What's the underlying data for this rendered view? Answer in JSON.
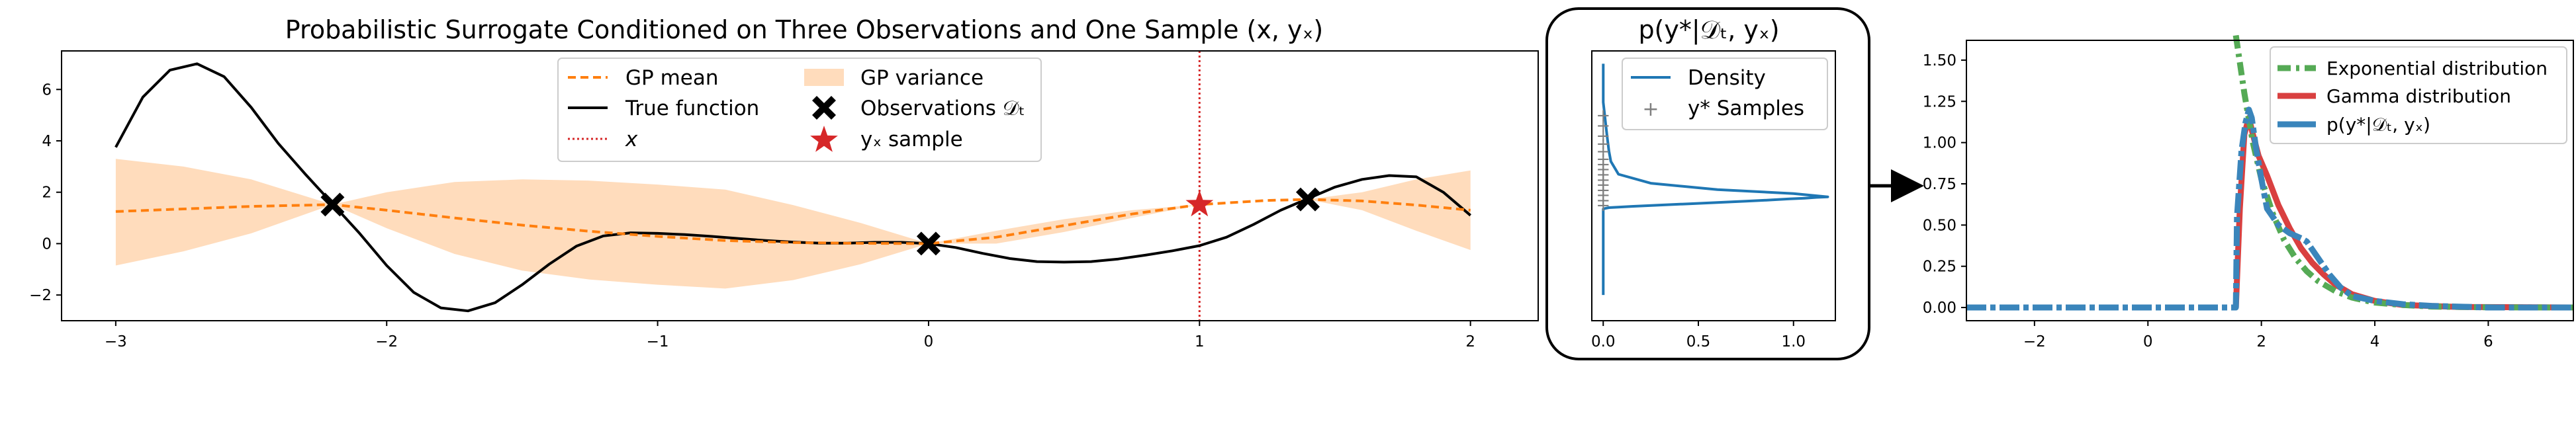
{
  "chart_data": [
    {
      "type": "line",
      "title": "Probabilistic Surrogate Conditioned on Three Observations and One Sample (x, yₓ)",
      "xlim": [
        -3.2,
        2.25
      ],
      "ylim": [
        -3.0,
        7.5
      ],
      "xticks": [
        "−3",
        "−2",
        "−1",
        "0",
        "1",
        "2"
      ],
      "yticks": [
        "−2",
        "0",
        "2",
        "4",
        "6"
      ],
      "legend": {
        "position": "top-center",
        "gp_mean": "GP mean",
        "gp_variance": "GP variance",
        "true_function": "True function",
        "observations": "Observations 𝒟ₜ",
        "x_marker": "x",
        "yx_sample": "yₓ sample"
      },
      "series": [
        {
          "name": "GP mean",
          "x": [
            -3.0,
            -2.75,
            -2.5,
            -2.2,
            -2.0,
            -1.75,
            -1.5,
            -1.25,
            -1.0,
            -0.75,
            -0.5,
            -0.25,
            0.0,
            0.25,
            0.5,
            0.75,
            1.0,
            1.25,
            1.4,
            1.6,
            1.8,
            2.0
          ],
          "y": [
            1.25,
            1.35,
            1.45,
            1.52,
            1.3,
            1.0,
            0.72,
            0.48,
            0.28,
            0.12,
            0.04,
            0.01,
            0.0,
            0.25,
            0.7,
            1.15,
            1.52,
            1.68,
            1.72,
            1.66,
            1.5,
            1.3
          ]
        },
        {
          "name": "GP variance",
          "x": [
            -3.0,
            -2.75,
            -2.5,
            -2.2,
            -2.0,
            -1.75,
            -1.5,
            -1.25,
            -1.0,
            -0.75,
            -0.5,
            -0.25,
            0.0,
            0.25,
            0.5,
            0.75,
            1.0,
            1.25,
            1.4,
            1.6,
            1.8,
            2.0
          ],
          "upper": [
            3.3,
            3.0,
            2.5,
            1.52,
            2.0,
            2.4,
            2.5,
            2.45,
            2.3,
            2.1,
            1.5,
            0.8,
            0.0,
            0.5,
            0.95,
            1.3,
            1.52,
            1.68,
            1.72,
            2.0,
            2.5,
            2.85
          ],
          "lower": [
            -0.85,
            -0.3,
            0.4,
            1.52,
            0.6,
            -0.4,
            -1.05,
            -1.4,
            -1.6,
            -1.75,
            -1.42,
            -0.8,
            0.0,
            0.0,
            0.45,
            1.0,
            1.52,
            1.68,
            1.72,
            1.3,
            0.5,
            -0.25
          ]
        },
        {
          "name": "True function",
          "x": [
            -3.0,
            -2.9,
            -2.8,
            -2.7,
            -2.6,
            -2.5,
            -2.4,
            -2.3,
            -2.2,
            -2.1,
            -2.0,
            -1.9,
            -1.8,
            -1.7,
            -1.6,
            -1.5,
            -1.4,
            -1.3,
            -1.2,
            -1.1,
            -1.0,
            -0.9,
            -0.8,
            -0.7,
            -0.6,
            -0.5,
            -0.4,
            -0.3,
            -0.2,
            -0.1,
            0.0,
            0.1,
            0.2,
            0.3,
            0.4,
            0.5,
            0.6,
            0.7,
            0.8,
            0.9,
            1.0,
            1.1,
            1.2,
            1.3,
            1.4,
            1.5,
            1.6,
            1.7,
            1.8,
            1.9,
            2.0
          ],
          "y": [
            3.75,
            5.7,
            6.75,
            7.0,
            6.5,
            5.3,
            3.9,
            2.7,
            1.55,
            0.4,
            -0.85,
            -1.9,
            -2.5,
            -2.62,
            -2.3,
            -1.6,
            -0.8,
            -0.1,
            0.3,
            0.42,
            0.4,
            0.35,
            0.28,
            0.2,
            0.12,
            0.06,
            0.02,
            0.02,
            0.05,
            0.05,
            0.0,
            -0.15,
            -0.38,
            -0.58,
            -0.7,
            -0.72,
            -0.7,
            -0.6,
            -0.45,
            -0.28,
            -0.08,
            0.25,
            0.75,
            1.3,
            1.75,
            2.2,
            2.5,
            2.65,
            2.6,
            2.0,
            1.1
          ]
        }
      ],
      "observations": [
        {
          "x": -2.2,
          "y": 1.52
        },
        {
          "x": 0.0,
          "y": 0.0
        },
        {
          "x": 1.4,
          "y": 1.72
        }
      ],
      "sample": {
        "x": 1.0,
        "y": 1.52
      },
      "vline_x": 1.0,
      "colors": {
        "mean": "#ff7f0e",
        "variance": "#ffdcbc",
        "true": "#000000",
        "vline": "#d62728",
        "star": "#d62728"
      }
    },
    {
      "type": "line",
      "title": "p(y*|𝒟ₜ, yₓ)",
      "xlim": [
        -0.06,
        1.22
      ],
      "ylim": [
        -3.0,
        7.5
      ],
      "xticks": [
        "0.0",
        "0.5",
        "1.0"
      ],
      "legend": {
        "position": "top-right",
        "density": "Density",
        "samples": "y* Samples"
      },
      "series": [
        {
          "name": "Density",
          "x": [
            0.0,
            0.0,
            0.0,
            0.0,
            0.0,
            0.0,
            0.01,
            0.03,
            0.08,
            0.15,
            0.3,
            0.45,
            0.6,
            0.75,
            0.88,
            0.98,
            1.06,
            1.12,
            1.18,
            1.0,
            0.6,
            0.25,
            0.08,
            0.04,
            0.03,
            0.02,
            0.0,
            0.0
          ],
          "y": [
            -2.0,
            0.0,
            1.0,
            1.2,
            1.3,
            1.35,
            1.37,
            1.4,
            1.42,
            1.45,
            1.5,
            1.55,
            1.6,
            1.65,
            1.7,
            1.74,
            1.77,
            1.8,
            1.82,
            1.95,
            2.1,
            2.35,
            2.7,
            3.2,
            3.6,
            4.2,
            5.5,
            7.0
          ]
        }
      ],
      "samples_y": [
        1.5,
        1.7,
        1.9,
        2.1,
        2.3,
        2.5,
        2.7,
        2.9,
        3.1,
        3.3,
        3.6,
        3.9,
        4.2,
        4.6,
        5.0
      ],
      "colors": {
        "density": "#1f77b4",
        "samples": "#7f7f7f"
      }
    },
    {
      "type": "line",
      "xlim": [
        -3.2,
        7.5
      ],
      "ylim": [
        -0.08,
        1.62
      ],
      "xticks": [
        "−2",
        "0",
        "2",
        "4",
        "6"
      ],
      "yticks": [
        "0.00",
        "0.25",
        "0.50",
        "0.75",
        "1.00",
        "1.25",
        "1.50"
      ],
      "legend": {
        "position": "top-right",
        "exponential": "Exponential distribution",
        "gamma": "Gamma distribution",
        "empirical": "p(y*|𝒟ₜ, yₓ)"
      },
      "series": [
        {
          "name": "Exponential distribution",
          "x": [
            1.55,
            1.7,
            1.85,
            2.0,
            2.2,
            2.4,
            2.6,
            2.8,
            3.0,
            3.3,
            3.6,
            4.0,
            4.5,
            5.0,
            6.0,
            7.5
          ],
          "y": [
            1.65,
            1.3,
            1.0,
            0.78,
            0.57,
            0.41,
            0.3,
            0.22,
            0.16,
            0.1,
            0.06,
            0.03,
            0.015,
            0.006,
            0.001,
            0.0
          ]
        },
        {
          "name": "Gamma distribution",
          "x": [
            1.55,
            1.62,
            1.7,
            1.78,
            1.85,
            1.95,
            2.1,
            2.3,
            2.5,
            2.7,
            2.9,
            3.1,
            3.3,
            3.6,
            4.0,
            4.5,
            5.5,
            7.5
          ],
          "y": [
            0.0,
            0.6,
            1.05,
            1.15,
            1.05,
            0.92,
            0.8,
            0.62,
            0.48,
            0.36,
            0.27,
            0.2,
            0.14,
            0.08,
            0.04,
            0.015,
            0.003,
            0.0
          ]
        },
        {
          "name": "p(y*|𝒟ₜ, yₓ)",
          "x": [
            -3.2,
            1.55,
            1.57,
            1.65,
            1.72,
            1.78,
            1.83,
            1.9,
            2.0,
            2.1,
            2.3,
            2.5,
            2.7,
            2.8,
            3.0,
            3.2,
            3.4,
            3.6,
            4.0,
            4.5,
            5.0,
            6.0,
            7.5
          ],
          "y": [
            0.0,
            0.0,
            0.55,
            0.95,
            1.12,
            1.2,
            1.15,
            0.98,
            0.78,
            0.6,
            0.5,
            0.45,
            0.42,
            0.4,
            0.3,
            0.2,
            0.12,
            0.07,
            0.04,
            0.02,
            0.01,
            0.0,
            0.0
          ]
        }
      ],
      "colors": {
        "exponential": "#55aa55",
        "gamma": "#d94040",
        "empirical": "#3a85bb"
      }
    }
  ]
}
